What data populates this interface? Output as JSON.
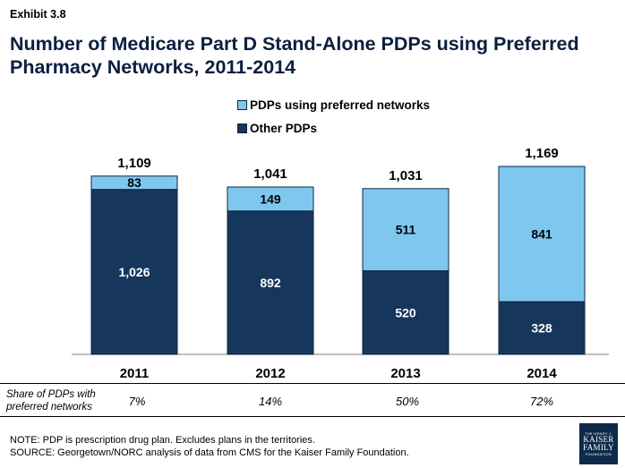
{
  "exhibit_label": "Exhibit 3.8",
  "title": "Number of Medicare Part D Stand-Alone PDPs using Preferred Pharmacy Networks, 2011-2014",
  "colors": {
    "preferred": "#7ec8f0",
    "other": "#16365c",
    "border": "#0d2540"
  },
  "chart_data": {
    "type": "bar",
    "stacked": true,
    "categories": [
      "2011",
      "2012",
      "2013",
      "2014"
    ],
    "series": [
      {
        "name": "Other PDPs",
        "values": [
          1026,
          892,
          520,
          328
        ],
        "labels": [
          "1,026",
          "892",
          "520",
          "328"
        ]
      },
      {
        "name": "PDPs using preferred networks",
        "values": [
          83,
          149,
          511,
          841
        ],
        "labels": [
          "83",
          "149",
          "511",
          "841"
        ]
      }
    ],
    "totals": [
      1109,
      1041,
      1031,
      1169
    ],
    "total_labels": [
      "1,109",
      "1,041",
      "1,031",
      "1,169"
    ],
    "legend": [
      "PDPs using preferred networks",
      "Other PDPs"
    ],
    "legend_position": "top-center",
    "ylim": [
      0,
      1200
    ],
    "grid": false
  },
  "share_row": {
    "label_line1": "Share of PDPs with",
    "label_line2": "preferred networks",
    "values": [
      "7%",
      "14%",
      "50%",
      "72%"
    ]
  },
  "notes": {
    "note": "NOTE: PDP is prescription drug plan.  Excludes plans in the territories.",
    "source": "SOURCE: Georgetown/NORC analysis of data from CMS for the Kaiser Family Foundation."
  },
  "logo": {
    "line1": "THE HENRY J.",
    "line2": "KAISER",
    "line3": "FAMILY",
    "line4": "FOUNDATION"
  }
}
